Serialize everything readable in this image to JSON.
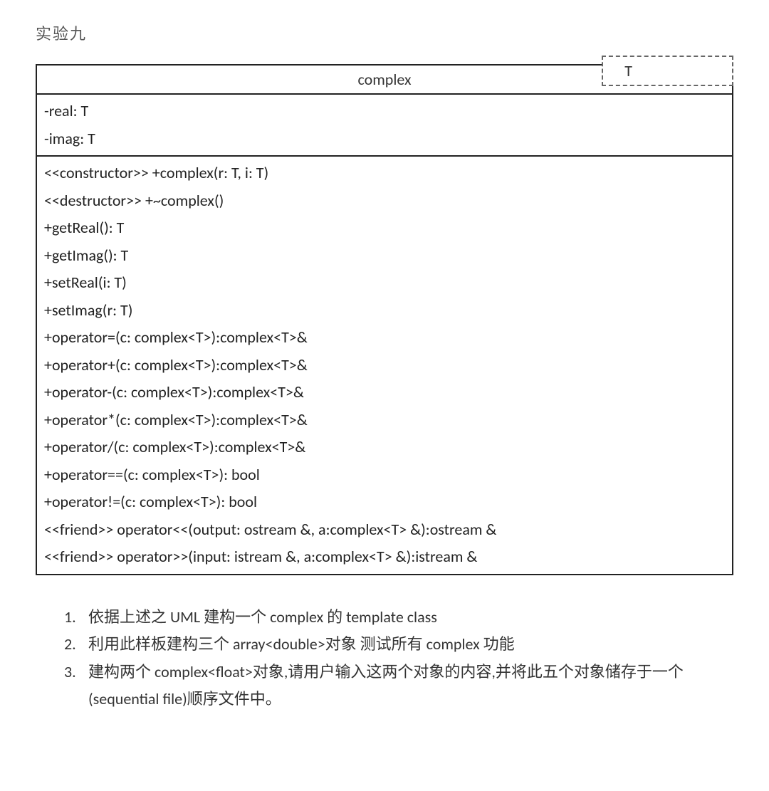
{
  "document": {
    "title": "实验九",
    "template_param": "T",
    "uml": {
      "class_name": "complex",
      "attributes": [
        "-real: T",
        "-imag: T"
      ],
      "operations": [
        "<<constructor>> +complex(r: T, i: T)",
        "<<destructor>> +~complex()",
        "+getReal(): T",
        "+getImag(): T",
        "+setReal(i: T)",
        "+setImag(r: T)",
        "+operator=(c: complex<T>):complex<T>&",
        "+operator+(c: complex<T>):complex<T>&",
        "+operator-(c: complex<T>):complex<T>&",
        "+operator*(c: complex<T>):complex<T>&",
        "+operator/(c: complex<T>):complex<T>&",
        "+operator==(c: complex<T>): bool",
        "+operator!=(c: complex<T>): bool",
        "<<friend>> operator<<(output: ostream &, a:complex<T> &):ostream &",
        "<<friend>> operator>>(input: istream &, a:complex<T> &):istream &"
      ]
    },
    "instructions": [
      {
        "num": "1.",
        "text": "依据上述之 UML  建构一个 complex 的 template class"
      },
      {
        "num": "2.",
        "text": "利用此样板建构三个  array<double>对象  测试所有 complex 功能"
      },
      {
        "num": "3.",
        "text": "建构两个 complex<float>对象,请用户输入这两个对象的内容,并将此五个对象储存于一个(sequential file)顺序文件中。"
      }
    ]
  },
  "style": {
    "background_color": "#ffffff",
    "text_color": "#333333",
    "border_color": "#222222",
    "dash_border_color": "#666666",
    "font_size_body": 22,
    "line_height": 1.75
  }
}
